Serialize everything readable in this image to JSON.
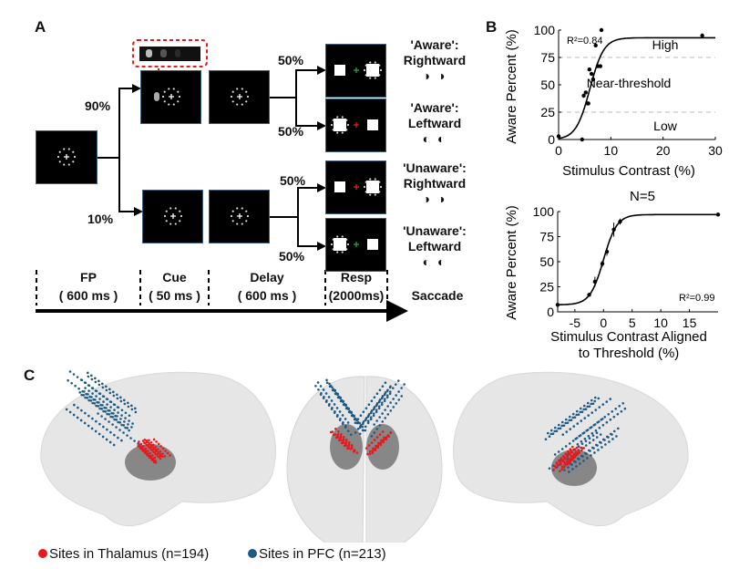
{
  "panel_labels": {
    "a": "A",
    "b": "B",
    "c": "C"
  },
  "panel_a": {
    "probabilities": {
      "cue": "90%",
      "no_cue": "10%",
      "aware_right": "50%",
      "aware_left": "50%",
      "unaware_right": "50%",
      "unaware_left": "50%"
    },
    "conditions": [
      {
        "label": "'Aware':",
        "direction": "Rightward",
        "eyes": "◑ ◑"
      },
      {
        "label": "'Aware':",
        "direction": "Leftward",
        "eyes": "◐ ◐"
      },
      {
        "label": "'Unaware':",
        "direction": "Rightward",
        "eyes": "◑ ◑"
      },
      {
        "label": "'Unaware':",
        "direction": "Leftward",
        "eyes": "◐ ◐"
      }
    ],
    "phases": [
      {
        "name": "FP",
        "duration": "( 600 ms )"
      },
      {
        "name": "Cue",
        "duration": "( 50 ms )"
      },
      {
        "name": "Delay",
        "duration": "( 600 ms )"
      },
      {
        "name": "Resp",
        "duration": "(2000ms)"
      }
    ],
    "final_phase": "Saccade",
    "colors": {
      "aware_fix": "#1fa84a",
      "unaware_fix": "#e02020",
      "highlight": "#e02020"
    }
  },
  "chart_data": [
    {
      "type": "scatter",
      "xlabel": "Stimulus Contrast (%)",
      "ylabel": "Aware Percent (%)",
      "xlim": [
        0,
        30
      ],
      "ylim": [
        0,
        100
      ],
      "xticks": [
        "0",
        "10",
        "20",
        "30"
      ],
      "yticks": [
        "0",
        "25",
        "50",
        "75",
        "100"
      ],
      "annotation": "R²=0.84",
      "regions": [
        "High",
        "Near-threshold",
        "Low"
      ],
      "thresholds": [
        25,
        75
      ],
      "fit": {
        "type": "sigmoid",
        "max": 93,
        "x50": 6,
        "slope": 0.75
      },
      "x": [
        0,
        4.5,
        4.8,
        5.2,
        5.5,
        5.7,
        5.9,
        6.3,
        6.6,
        7.1,
        7.5,
        8,
        8.2,
        27.5
      ],
      "y": [
        3,
        0,
        40,
        43,
        33,
        33,
        64,
        60,
        55,
        86,
        67,
        67,
        100,
        95
      ]
    },
    {
      "type": "scatter",
      "title": "N=5",
      "xlabel": "Stimulus Contrast Aligned to Threshold (%)",
      "ylabel": "Aware Percent (%)",
      "xlim": [
        -8,
        20
      ],
      "ylim": [
        0,
        100
      ],
      "xticks": [
        "-5",
        "0",
        "5",
        "10",
        "15"
      ],
      "yticks": [
        "0",
        "25",
        "50",
        "75",
        "100"
      ],
      "annotation": "R²=0.99",
      "fit": {
        "type": "sigmoid",
        "min": 7,
        "max": 97,
        "x50": 0,
        "slope": 0.85
      },
      "x": [
        -8,
        -2.5,
        -1.5,
        -0.2,
        0.6,
        1.8,
        2.9,
        20
      ],
      "y": [
        7,
        17,
        30,
        48,
        60,
        82,
        90,
        97
      ],
      "err": [
        0,
        2,
        5,
        3,
        4,
        7,
        3,
        0
      ]
    }
  ],
  "panel_c": {
    "legend": [
      {
        "label": "Sites in Thalamus (n=194)",
        "color": "#e8191c"
      },
      {
        "label": "Sites in PFC (n=213)",
        "color": "#1f5a85"
      }
    ]
  }
}
